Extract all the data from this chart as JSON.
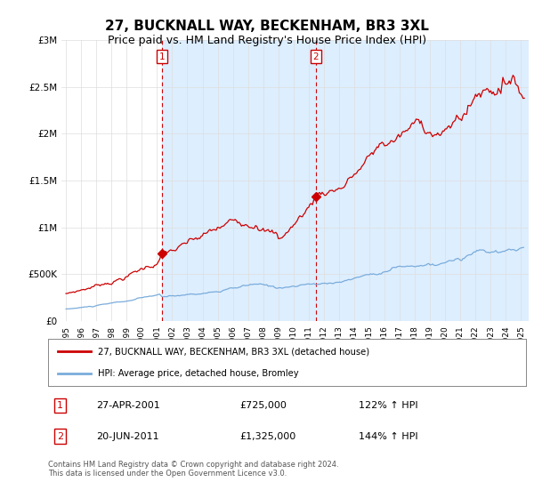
{
  "title": "27, BUCKNALL WAY, BECKENHAM, BR3 3XL",
  "subtitle": "Price paid vs. HM Land Registry's House Price Index (HPI)",
  "title_fontsize": 11,
  "subtitle_fontsize": 9,
  "background_color": "#ffffff",
  "legend_line1": "27, BUCKNALL WAY, BECKENHAM, BR3 3XL (detached house)",
  "legend_line2": "HPI: Average price, detached house, Bromley",
  "table_row1": [
    "1",
    "27-APR-2001",
    "£725,000",
    "122% ↑ HPI"
  ],
  "table_row2": [
    "2",
    "20-JUN-2011",
    "£1,325,000",
    "144% ↑ HPI"
  ],
  "footnote": "Contains HM Land Registry data © Crown copyright and database right 2024.\nThis data is licensed under the Open Government Licence v3.0.",
  "red_color": "#cc0000",
  "blue_color": "#7aacdb",
  "shaded_color": "#ddeeff",
  "purchase1_year": 2001.32,
  "purchase2_year": 2011.47,
  "purchase1_price": 725000,
  "purchase2_price": 1325000,
  "ylim": [
    0,
    3000000
  ],
  "yticks": [
    0,
    500000,
    1000000,
    1500000,
    2000000,
    2500000,
    3000000
  ],
  "ytick_labels": [
    "£0",
    "£500K",
    "£1M",
    "£1.5M",
    "£2M",
    "£2.5M",
    "£3M"
  ]
}
